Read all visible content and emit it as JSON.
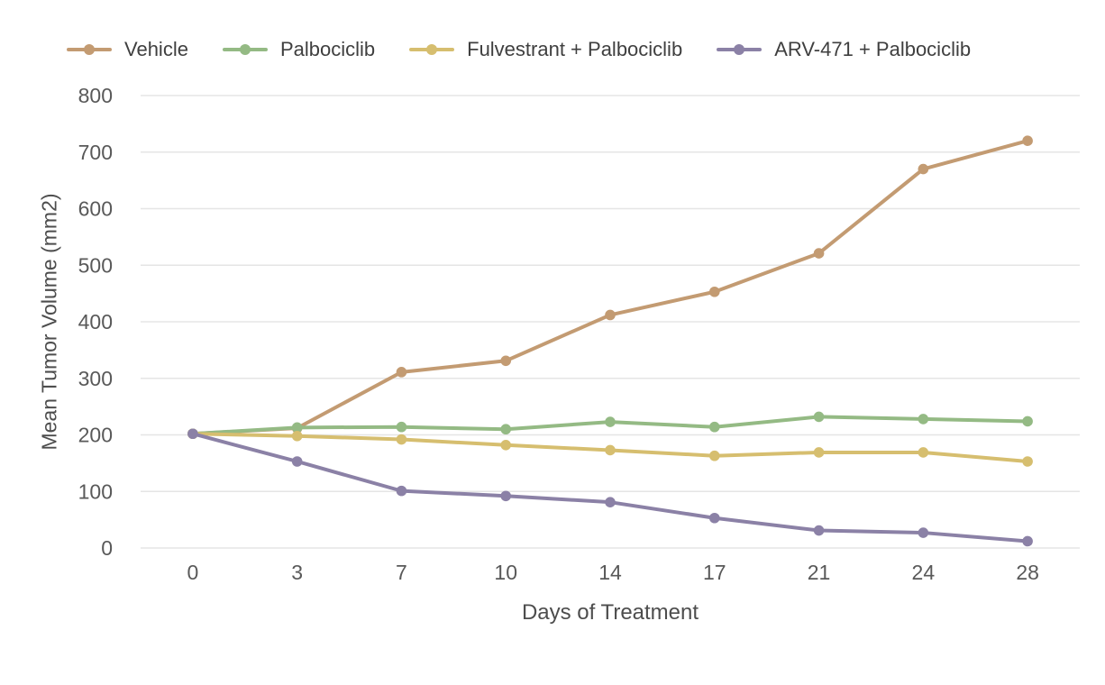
{
  "chart_data": {
    "type": "line",
    "title": "",
    "xlabel": "Days of Treatment",
    "ylabel": "Mean Tumor Volume (mm2)",
    "categories": [
      "0",
      "3",
      "7",
      "10",
      "14",
      "17",
      "21",
      "24",
      "28"
    ],
    "ylim": [
      0,
      800
    ],
    "ytick_step": 100,
    "grid": "horizontal-only",
    "legend_position": "top",
    "series": [
      {
        "name": "Vehicle",
        "color": "#C39B72",
        "values": [
          202,
          212,
          311,
          331,
          412,
          453,
          521,
          670,
          720
        ]
      },
      {
        "name": "Palbociclib",
        "color": "#94BA84",
        "values": [
          202,
          213,
          214,
          210,
          223,
          214,
          232,
          228,
          224
        ]
      },
      {
        "name": "Fulvestrant + Palbociclib",
        "color": "#D6BE6F",
        "values": [
          202,
          198,
          192,
          182,
          173,
          163,
          169,
          169,
          153
        ]
      },
      {
        "name": "ARV-471 + Palbociclib",
        "color": "#8B81A6",
        "values": [
          202,
          153,
          101,
          92,
          81,
          53,
          31,
          27,
          12
        ]
      }
    ]
  },
  "colors": {
    "background": "#FFFFFF",
    "gridline": "#E5E5E5",
    "tick_text": "#595959",
    "axis_title_text": "#4D4D4D",
    "legend_text": "#3F3F3F"
  }
}
